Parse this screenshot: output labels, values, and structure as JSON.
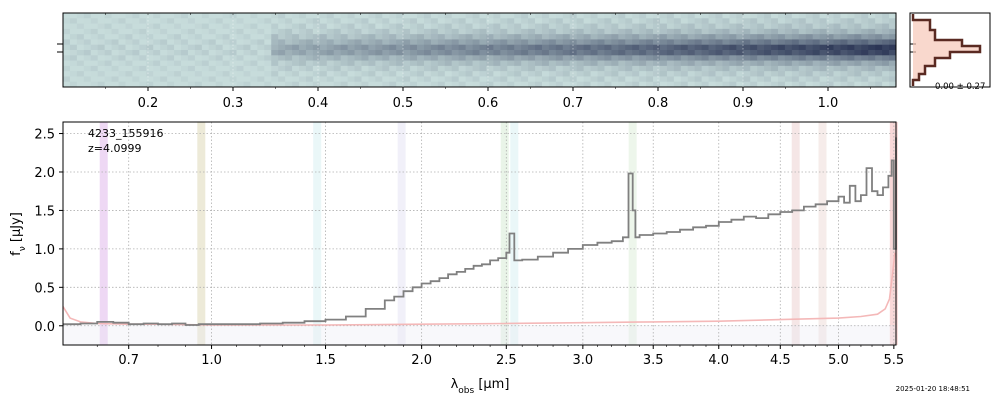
{
  "timestamp": "2025-01-20 18:48:51",
  "colors": {
    "spectrum": "#808080",
    "error": "#f4b8b8",
    "twod_low": "#c7dcdb",
    "twod_high": "#2b3555",
    "hist_fill": "#f6c8b8",
    "hist_line": "#5a2a22",
    "grid": "#b0b0b0"
  },
  "twod_panel": {
    "xticks": [
      {
        "v": 0.2,
        "label": "0.2"
      },
      {
        "v": 0.3,
        "label": "0.3"
      },
      {
        "v": 0.4,
        "label": "0.4"
      },
      {
        "v": 0.5,
        "label": "0.5"
      },
      {
        "v": 0.6,
        "label": "0.6"
      },
      {
        "v": 0.7,
        "label": "0.7"
      },
      {
        "v": 0.8,
        "label": "0.8"
      },
      {
        "v": 0.9,
        "label": "0.9"
      },
      {
        "v": 1.0,
        "label": "1.0"
      }
    ],
    "hist_label": "0.00 ± 0.27"
  },
  "chart_data": {
    "type": "line",
    "object_id": "4233_155916",
    "redshift_label": "z=4.0999",
    "xlabel_main": "λ",
    "xlabel_sub": "obs",
    "xlabel_unit": " [μm]",
    "ylabel_main": "f",
    "ylabel_sub": "ν",
    "ylabel_unit": " [μJy]",
    "xlim": [
      0.5,
      5.52
    ],
    "ylim": [
      -0.25,
      2.65
    ],
    "xticks": [
      {
        "v": 0.7,
        "label": "0.7"
      },
      {
        "v": 1.0,
        "label": "1.0"
      },
      {
        "v": 1.5,
        "label": "1.5"
      },
      {
        "v": 2.0,
        "label": "2.0"
      },
      {
        "v": 2.5,
        "label": "2.5"
      },
      {
        "v": 3.0,
        "label": "3.0"
      },
      {
        "v": 3.5,
        "label": "3.5"
      },
      {
        "v": 4.0,
        "label": "4.0"
      },
      {
        "v": 4.5,
        "label": "4.5"
      },
      {
        "v": 5.0,
        "label": "5.0"
      },
      {
        "v": 5.5,
        "label": "5.5"
      }
    ],
    "yticks": [
      {
        "v": 0.0,
        "label": "0.0"
      },
      {
        "v": 0.5,
        "label": "0.5"
      },
      {
        "v": 1.0,
        "label": "1.0"
      },
      {
        "v": 1.5,
        "label": "1.5"
      },
      {
        "v": 2.0,
        "label": "2.0"
      },
      {
        "v": 2.5,
        "label": "2.5"
      }
    ],
    "line_bands": [
      {
        "w": 0.62,
        "color": "#d9a8e6"
      },
      {
        "w": 0.96,
        "color": "#d8d0a8"
      },
      {
        "w": 1.46,
        "color": "#d0eef0"
      },
      {
        "w": 1.89,
        "color": "#e0ddf2"
      },
      {
        "w": 2.49,
        "color": "#cfe6cc"
      },
      {
        "w": 2.55,
        "color": "#d0eef0"
      },
      {
        "w": 3.35,
        "color": "#d6ead2"
      },
      {
        "w": 4.63,
        "color": "#e9c8c8"
      },
      {
        "w": 4.86,
        "color": "#ead4d0"
      },
      {
        "w": 5.5,
        "color": "#f2a8a8"
      }
    ],
    "series": [
      {
        "role": "flux",
        "x": [
          0.5,
          0.55,
          0.6,
          0.65,
          0.7,
          0.75,
          0.8,
          0.85,
          0.9,
          0.95,
          1.0,
          1.1,
          1.2,
          1.3,
          1.4,
          1.5,
          1.6,
          1.7,
          1.8,
          1.85,
          1.9,
          1.95,
          2.0,
          2.05,
          2.1,
          2.15,
          2.2,
          2.25,
          2.3,
          2.35,
          2.4,
          2.45,
          2.5,
          2.52,
          2.55,
          2.6,
          2.7,
          2.8,
          2.9,
          3.0,
          3.1,
          3.2,
          3.28,
          3.32,
          3.35,
          3.37,
          3.4,
          3.5,
          3.6,
          3.7,
          3.8,
          3.9,
          4.0,
          4.1,
          4.2,
          4.3,
          4.4,
          4.5,
          4.6,
          4.7,
          4.8,
          4.9,
          5.0,
          5.05,
          5.1,
          5.15,
          5.2,
          5.25,
          5.3,
          5.35,
          5.4,
          5.45,
          5.48,
          5.5,
          5.52
        ],
        "values": [
          0.02,
          0.03,
          0.05,
          0.04,
          0.02,
          0.03,
          0.02,
          0.03,
          0.01,
          0.02,
          0.02,
          0.02,
          0.03,
          0.04,
          0.06,
          0.08,
          0.12,
          0.22,
          0.33,
          0.38,
          0.45,
          0.5,
          0.55,
          0.58,
          0.62,
          0.67,
          0.7,
          0.74,
          0.78,
          0.8,
          0.85,
          0.88,
          0.95,
          1.2,
          0.85,
          0.86,
          0.9,
          0.95,
          1.0,
          1.05,
          1.08,
          1.1,
          1.15,
          1.98,
          1.5,
          1.15,
          1.18,
          1.2,
          1.22,
          1.25,
          1.28,
          1.3,
          1.35,
          1.38,
          1.42,
          1.4,
          1.45,
          1.48,
          1.5,
          1.55,
          1.58,
          1.62,
          1.68,
          1.6,
          1.82,
          1.62,
          1.7,
          2.05,
          1.75,
          1.7,
          1.8,
          1.95,
          2.15,
          1.0,
          2.45
        ]
      },
      {
        "role": "error",
        "x": [
          0.5,
          0.52,
          0.55,
          0.6,
          0.7,
          0.8,
          1.0,
          1.5,
          2.0,
          2.5,
          3.0,
          3.5,
          4.0,
          4.5,
          5.0,
          5.2,
          5.35,
          5.42,
          5.46,
          5.49,
          5.51
        ],
        "values": [
          0.25,
          0.1,
          0.05,
          0.03,
          0.02,
          0.02,
          0.01,
          0.01,
          0.02,
          0.03,
          0.04,
          0.05,
          0.06,
          0.08,
          0.1,
          0.12,
          0.15,
          0.22,
          0.35,
          0.7,
          0.95
        ]
      }
    ]
  }
}
